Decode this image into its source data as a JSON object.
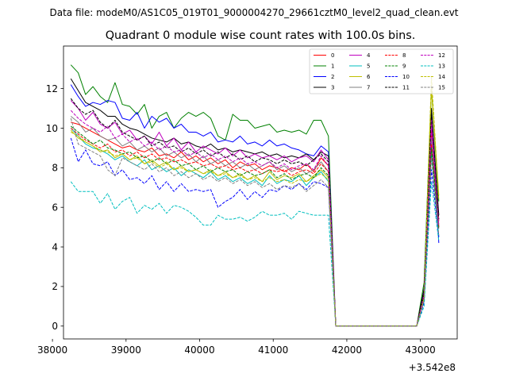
{
  "suptitle": "Data file: modeM0/AS1C05_019T01_9000004270_29661cztM0_level2_quad_clean.evt",
  "chart_data": {
    "type": "line",
    "title": "Quadrant 0 module wise count rates with 100.0s bins.",
    "xlabel": "",
    "ylabel": "",
    "x_offset_label": "+3.542e8",
    "xlim": [
      38150,
      43500
    ],
    "ylim": [
      -0.65,
      14.15
    ],
    "xticks": [
      38000,
      39000,
      40000,
      41000,
      42000,
      43000
    ],
    "xtick_labels": [
      "38000",
      "39000",
      "40000",
      "41000",
      "42000",
      "43000"
    ],
    "yticks": [
      0,
      2,
      4,
      6,
      8,
      10,
      12
    ],
    "ytick_labels": [
      "0",
      "2",
      "4",
      "6",
      "8",
      "10",
      "12"
    ],
    "grid": false,
    "legend_position": "top-right",
    "x": [
      38250,
      38350,
      38450,
      38550,
      38650,
      38750,
      38850,
      38950,
      39050,
      39150,
      39250,
      39350,
      39450,
      39550,
      39650,
      39750,
      39850,
      39950,
      40050,
      40150,
      40250,
      40350,
      40450,
      40550,
      40650,
      40750,
      40850,
      40950,
      41050,
      41150,
      41250,
      41350,
      41450,
      41550,
      41650,
      41750,
      41850,
      41950,
      42050,
      42150,
      42250,
      42350,
      42450,
      42550,
      42650,
      42750,
      42850,
      42950,
      43050,
      43150,
      43250
    ],
    "series": [
      {
        "name": "0",
        "color": "#ff0000",
        "dash": "solid",
        "values": [
          10.3,
          10.2,
          10.0,
          9.8,
          9.6,
          9.4,
          9.2,
          9.0,
          9.1,
          8.9,
          8.8,
          9.0,
          8.6,
          8.7,
          8.5,
          8.8,
          8.4,
          8.6,
          8.3,
          8.5,
          8.2,
          8.4,
          8.0,
          8.3,
          8.1,
          8.2,
          7.9,
          8.1,
          8.0,
          7.8,
          8.0,
          7.9,
          8.2,
          7.8,
          8.5,
          8.1,
          0,
          0,
          0,
          0,
          0,
          0,
          0,
          0,
          0,
          0,
          0,
          0,
          1.5,
          9.9,
          5.3
        ]
      },
      {
        "name": "1",
        "color": "#008000",
        "dash": "solid",
        "values": [
          13.2,
          12.8,
          11.7,
          12.1,
          11.6,
          11.3,
          12.3,
          11.2,
          11.1,
          10.7,
          11.2,
          10.0,
          10.6,
          10.8,
          10.0,
          10.5,
          10.8,
          10.6,
          10.8,
          10.5,
          9.6,
          9.4,
          10.7,
          10.4,
          10.4,
          10.0,
          10.1,
          10.2,
          9.8,
          9.9,
          9.8,
          9.9,
          9.7,
          10.4,
          10.4,
          9.6,
          0,
          0,
          0,
          0,
          0,
          0,
          0,
          0,
          0,
          0,
          0,
          0,
          2.2,
          12.0,
          6.3
        ]
      },
      {
        "name": "2",
        "color": "#0000ff",
        "dash": "solid",
        "values": [
          12.2,
          11.6,
          11.1,
          11.3,
          11.2,
          11.4,
          11.3,
          10.5,
          10.4,
          10.8,
          10.0,
          10.6,
          10.3,
          10.5,
          10.0,
          10.2,
          9.8,
          9.8,
          9.6,
          9.8,
          9.3,
          9.4,
          9.3,
          9.6,
          9.2,
          9.3,
          9.1,
          9.4,
          9.1,
          9.2,
          9.0,
          8.9,
          8.7,
          8.6,
          9.1,
          8.8,
          0,
          0,
          0,
          0,
          0,
          0,
          0,
          0,
          0,
          0,
          0,
          0,
          1.8,
          10.6,
          4.2
        ]
      },
      {
        "name": "3",
        "color": "#000000",
        "dash": "solid",
        "values": [
          12.5,
          11.9,
          11.3,
          11.1,
          10.9,
          10.6,
          10.6,
          10.2,
          10.0,
          9.9,
          9.7,
          9.5,
          9.4,
          9.3,
          9.5,
          9.2,
          9.3,
          9.1,
          9.0,
          9.2,
          8.9,
          9.0,
          8.8,
          8.9,
          8.8,
          8.7,
          8.8,
          8.6,
          8.7,
          8.5,
          8.6,
          8.5,
          8.7,
          8.4,
          8.8,
          8.6,
          0,
          0,
          0,
          0,
          0,
          0,
          0,
          0,
          0,
          0,
          0,
          0,
          1.9,
          11.0,
          5.6
        ]
      },
      {
        "name": "4",
        "color": "#bf00bf",
        "dash": "solid",
        "values": [
          11.4,
          11.0,
          10.4,
          10.8,
          10.2,
          10.0,
          10.3,
          9.7,
          9.9,
          9.4,
          9.6,
          9.2,
          9.8,
          9.1,
          9.5,
          8.9,
          9.3,
          8.8,
          9.1,
          8.9,
          8.7,
          9.0,
          8.6,
          8.9,
          8.5,
          8.7,
          8.5,
          8.6,
          8.4,
          8.6,
          8.3,
          8.5,
          8.6,
          8.3,
          8.9,
          8.4,
          0,
          0,
          0,
          0,
          0,
          0,
          0,
          0,
          0,
          0,
          0,
          0,
          1.6,
          10.5,
          5.0
        ]
      },
      {
        "name": "5",
        "color": "#00bfbf",
        "dash": "solid",
        "values": [
          10.0,
          9.6,
          9.2,
          9.0,
          8.9,
          8.7,
          8.4,
          8.6,
          8.3,
          8.1,
          8.4,
          7.9,
          8.1,
          7.8,
          8.0,
          7.6,
          7.9,
          7.7,
          7.5,
          7.8,
          7.4,
          7.6,
          7.3,
          7.5,
          7.2,
          7.4,
          7.1,
          7.6,
          7.2,
          7.4,
          7.3,
          7.6,
          7.1,
          7.5,
          7.8,
          7.3,
          0,
          0,
          0,
          0,
          0,
          0,
          0,
          0,
          0,
          0,
          0,
          0,
          1.3,
          8.8,
          4.5
        ]
      },
      {
        "name": "6",
        "color": "#bfbf00",
        "dash": "solid",
        "values": [
          9.9,
          9.5,
          9.3,
          9.1,
          8.8,
          8.9,
          8.5,
          8.7,
          8.4,
          8.6,
          8.2,
          8.4,
          8.1,
          8.3,
          7.9,
          8.1,
          7.8,
          7.9,
          7.7,
          7.9,
          7.6,
          7.8,
          7.5,
          7.7,
          7.4,
          7.6,
          7.3,
          7.8,
          7.4,
          7.6,
          7.5,
          7.7,
          7.3,
          7.6,
          7.9,
          7.5,
          0,
          0,
          0,
          0,
          0,
          0,
          0,
          0,
          0,
          0,
          0,
          0,
          1.4,
          12.0,
          6.6
        ]
      },
      {
        "name": "7",
        "color": "#808080",
        "dash": "solid",
        "values": [
          10.6,
          10.3,
          9.8,
          10.0,
          9.6,
          9.4,
          9.5,
          9.1,
          9.3,
          8.9,
          9.1,
          8.8,
          9.0,
          8.6,
          8.8,
          8.5,
          8.7,
          8.3,
          8.6,
          8.2,
          8.4,
          8.1,
          8.3,
          8.0,
          8.2,
          7.9,
          8.1,
          8.3,
          7.9,
          8.1,
          7.8,
          8.0,
          7.7,
          7.9,
          8.3,
          7.8,
          0,
          0,
          0,
          0,
          0,
          0,
          0,
          0,
          0,
          0,
          0,
          0,
          1.5,
          9.5,
          5.1
        ]
      },
      {
        "name": "8",
        "color": "#ff0000",
        "dash": "dashed",
        "values": [
          10.0,
          9.7,
          9.4,
          9.2,
          9.0,
          9.2,
          8.8,
          8.9,
          8.6,
          8.8,
          8.5,
          8.7,
          8.4,
          8.5,
          8.3,
          8.4,
          8.2,
          8.3,
          8.1,
          8.2,
          8.0,
          8.1,
          7.9,
          8.0,
          7.8,
          7.9,
          7.7,
          7.9,
          7.8,
          7.9,
          7.6,
          7.8,
          7.9,
          7.7,
          8.2,
          7.8,
          0,
          0,
          0,
          0,
          0,
          0,
          0,
          0,
          0,
          0,
          0,
          0,
          1.5,
          9.2,
          5.0
        ]
      },
      {
        "name": "9",
        "color": "#008000",
        "dash": "dashed",
        "values": [
          10.1,
          9.8,
          9.5,
          9.2,
          9.4,
          9.0,
          8.9,
          8.7,
          8.8,
          8.5,
          8.6,
          8.3,
          8.5,
          8.2,
          8.4,
          8.1,
          8.2,
          7.9,
          8.1,
          7.8,
          8.0,
          7.8,
          7.9,
          7.6,
          7.8,
          7.6,
          7.7,
          7.9,
          7.5,
          7.7,
          7.4,
          7.6,
          7.7,
          7.5,
          8.0,
          7.6,
          0,
          0,
          0,
          0,
          0,
          0,
          0,
          0,
          0,
          0,
          0,
          0,
          1.5,
          9.0,
          4.9
        ]
      },
      {
        "name": "10",
        "color": "#0000ff",
        "dash": "dashed",
        "values": [
          9.5,
          8.3,
          8.9,
          8.2,
          8.1,
          8.3,
          7.6,
          7.9,
          7.4,
          7.5,
          7.2,
          7.6,
          6.9,
          7.3,
          6.8,
          7.2,
          6.8,
          6.9,
          6.8,
          6.9,
          6.0,
          6.3,
          6.5,
          6.9,
          6.4,
          6.8,
          6.5,
          6.9,
          6.8,
          7.1,
          6.9,
          7.2,
          6.9,
          7.3,
          7.2,
          7.0,
          0,
          0,
          0,
          0,
          0,
          0,
          0,
          0,
          0,
          0,
          0,
          0,
          1.2,
          7.9,
          4.5
        ]
      },
      {
        "name": "11",
        "color": "#000000",
        "dash": "dashed",
        "values": [
          11.5,
          11.0,
          10.7,
          10.9,
          10.3,
          10.0,
          10.4,
          9.8,
          9.6,
          9.4,
          9.6,
          9.1,
          9.3,
          9.0,
          9.1,
          8.8,
          9.0,
          8.7,
          8.9,
          8.6,
          8.8,
          8.5,
          8.7,
          8.4,
          8.6,
          8.3,
          8.5,
          8.4,
          8.2,
          8.4,
          8.2,
          8.3,
          8.1,
          8.4,
          8.7,
          8.3,
          0,
          0,
          0,
          0,
          0,
          0,
          0,
          0,
          0,
          0,
          0,
          0,
          1.7,
          10.9,
          5.4
        ]
      },
      {
        "name": "12",
        "color": "#bf00bf",
        "dash": "dashed",
        "values": [
          10.9,
          10.5,
          10.2,
          10.0,
          9.8,
          10.1,
          9.5,
          9.7,
          9.3,
          9.5,
          9.1,
          9.3,
          8.9,
          9.1,
          8.8,
          8.9,
          8.6,
          8.8,
          8.5,
          8.7,
          8.4,
          8.6,
          8.3,
          8.5,
          8.2,
          8.3,
          8.1,
          8.3,
          8.0,
          8.2,
          7.9,
          8.1,
          8.2,
          7.9,
          8.6,
          8.1,
          0,
          0,
          0,
          0,
          0,
          0,
          0,
          0,
          0,
          0,
          0,
          0,
          1.6,
          10.0,
          5.1
        ]
      },
      {
        "name": "13",
        "color": "#00bfbf",
        "dash": "dashed",
        "values": [
          7.3,
          6.8,
          6.8,
          6.8,
          6.2,
          6.7,
          5.9,
          6.3,
          6.5,
          5.7,
          6.1,
          5.9,
          6.2,
          5.7,
          6.1,
          6.0,
          5.8,
          5.5,
          5.1,
          5.1,
          5.6,
          5.4,
          5.4,
          5.5,
          5.3,
          5.5,
          5.8,
          5.6,
          5.6,
          5.7,
          5.4,
          5.8,
          5.7,
          5.6,
          5.6,
          5.6,
          0,
          0,
          0,
          0,
          0,
          0,
          0,
          0,
          0,
          0,
          0,
          0,
          1.0,
          7.3,
          4.3
        ]
      },
      {
        "name": "14",
        "color": "#bfbf00",
        "dash": "dashed",
        "values": [
          9.8,
          9.6,
          9.3,
          9.1,
          8.9,
          8.8,
          8.6,
          8.7,
          8.4,
          8.5,
          8.2,
          8.3,
          8.0,
          8.2,
          7.9,
          8.0,
          7.8,
          7.9,
          7.7,
          7.8,
          7.6,
          7.7,
          7.5,
          7.6,
          7.4,
          7.5,
          7.3,
          7.5,
          7.3,
          7.4,
          7.2,
          7.4,
          7.3,
          7.5,
          7.7,
          7.4,
          0,
          0,
          0,
          0,
          0,
          0,
          0,
          0,
          0,
          0,
          0,
          0,
          1.4,
          12.6,
          6.4
        ]
      },
      {
        "name": "15",
        "color": "#808080",
        "dash": "dashed",
        "values": [
          10.5,
          9.2,
          9.0,
          8.8,
          8.6,
          7.9,
          7.6,
          8.5,
          8.3,
          8.1,
          7.9,
          8.2,
          7.8,
          8.0,
          7.6,
          7.8,
          7.5,
          7.7,
          7.4,
          7.6,
          7.3,
          7.5,
          7.2,
          7.4,
          7.1,
          7.3,
          7.0,
          7.2,
          6.9,
          7.1,
          7.0,
          7.2,
          6.8,
          7.1,
          7.4,
          7.0,
          0,
          0,
          0,
          0,
          0,
          0,
          0,
          0,
          0,
          0,
          0,
          0,
          1.3,
          8.5,
          4.6
        ]
      }
    ]
  }
}
